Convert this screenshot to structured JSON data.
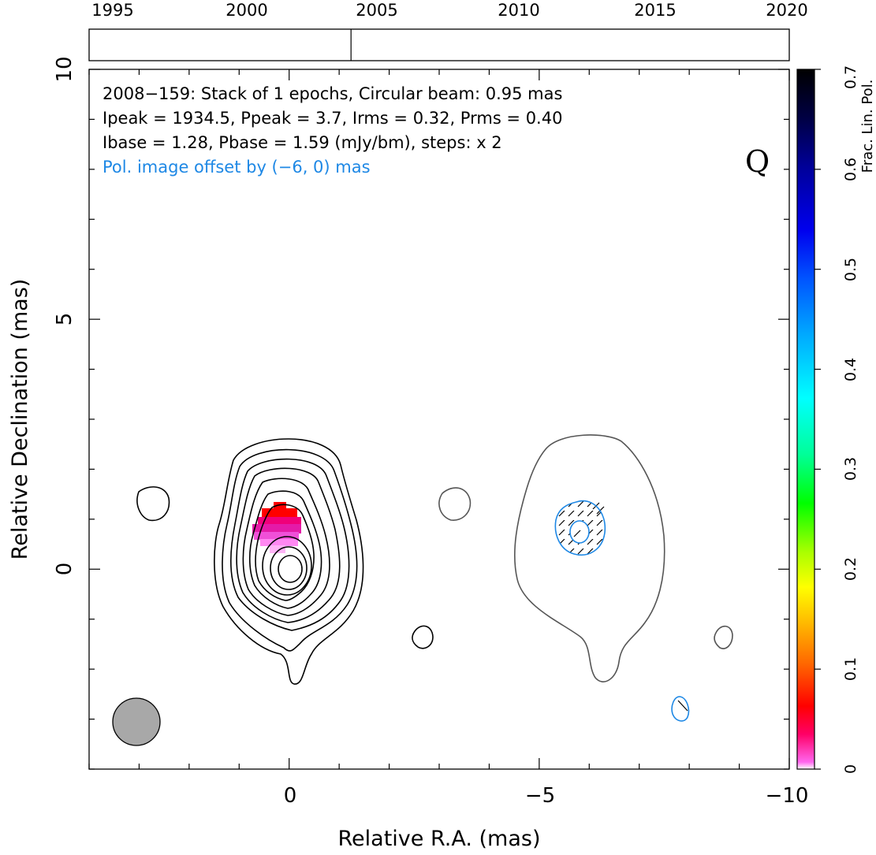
{
  "chart_data": {
    "type": "contour",
    "title_lines": [
      "2008−159: Stack of 1 epochs, Circular beam: 0.95 mas",
      "Ipeak = 1934.5, Ppeak = 3.7, Irms = 0.32, Prms = 0.40",
      "Ibase = 1.28, Pbase = 1.59 (mJy/bm), steps: x 2"
    ],
    "offset_note": "Pol. image offset by (−6, 0) mas",
    "quality_flag": "Q",
    "xlabel": "Relative R.A. (mas)",
    "ylabel": "Relative Declination (mas)",
    "xlim": [
      4,
      -10
    ],
    "ylim": [
      -4,
      10
    ],
    "x_tick_labels": [
      "0",
      "−5",
      "−10"
    ],
    "x_tick_values": [
      0,
      -5,
      -10
    ],
    "y_tick_labels": [
      "0",
      "5",
      "10"
    ],
    "y_tick_values": [
      0,
      5,
      10
    ],
    "timeline": {
      "xlim": [
        1993,
        2020
      ],
      "tick_labels": [
        "1995",
        "2000",
        "2005",
        "2010",
        "2015",
        "2020"
      ],
      "tick_values": [
        1995,
        2000,
        2005,
        2010,
        2015,
        2020
      ],
      "epochs": [
        2003.1
      ]
    },
    "colorbar": {
      "label": "Frac. Lin. Pol.",
      "range": [
        0,
        0.7
      ],
      "tick_labels": [
        "0",
        "0.1",
        "0.2",
        "0.3",
        "0.4",
        "0.5",
        "0.6",
        "0.7"
      ],
      "tick_values": [
        0,
        0.1,
        0.2,
        0.3,
        0.4,
        0.5,
        0.6,
        0.7
      ]
    },
    "beam": {
      "center": [
        2.9,
        -3.05
      ],
      "diameter_mas": 0.95,
      "color": "#a8a8a8"
    },
    "colors": {
      "stokes_i": "#000000",
      "pol_i": "#555555",
      "pol_p": "#1e88e5",
      "note": "#1e88e5"
    }
  }
}
